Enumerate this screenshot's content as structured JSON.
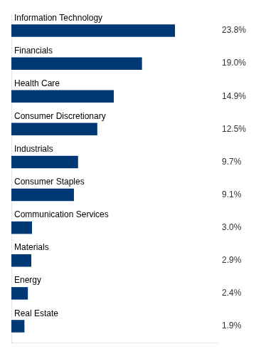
{
  "chart_data": {
    "type": "bar",
    "orientation": "horizontal",
    "categories": [
      "Information Technology",
      "Financials",
      "Health Care",
      "Consumer Discretionary",
      "Industrials",
      "Consumer Staples",
      "Communication Services",
      "Materials",
      "Energy",
      "Real Estate"
    ],
    "values": [
      23.8,
      19.0,
      14.9,
      12.5,
      9.7,
      9.1,
      3.0,
      2.9,
      2.4,
      1.9
    ],
    "value_labels": [
      "23.8%",
      "19.0%",
      "14.9%",
      "12.5%",
      "9.7%",
      "9.1%",
      "3.0%",
      "2.9%",
      "2.4%",
      "1.9%"
    ],
    "data_labels": true,
    "color": "#003876",
    "xlim": [
      0,
      30
    ],
    "tick_labels": false,
    "grid": false
  }
}
